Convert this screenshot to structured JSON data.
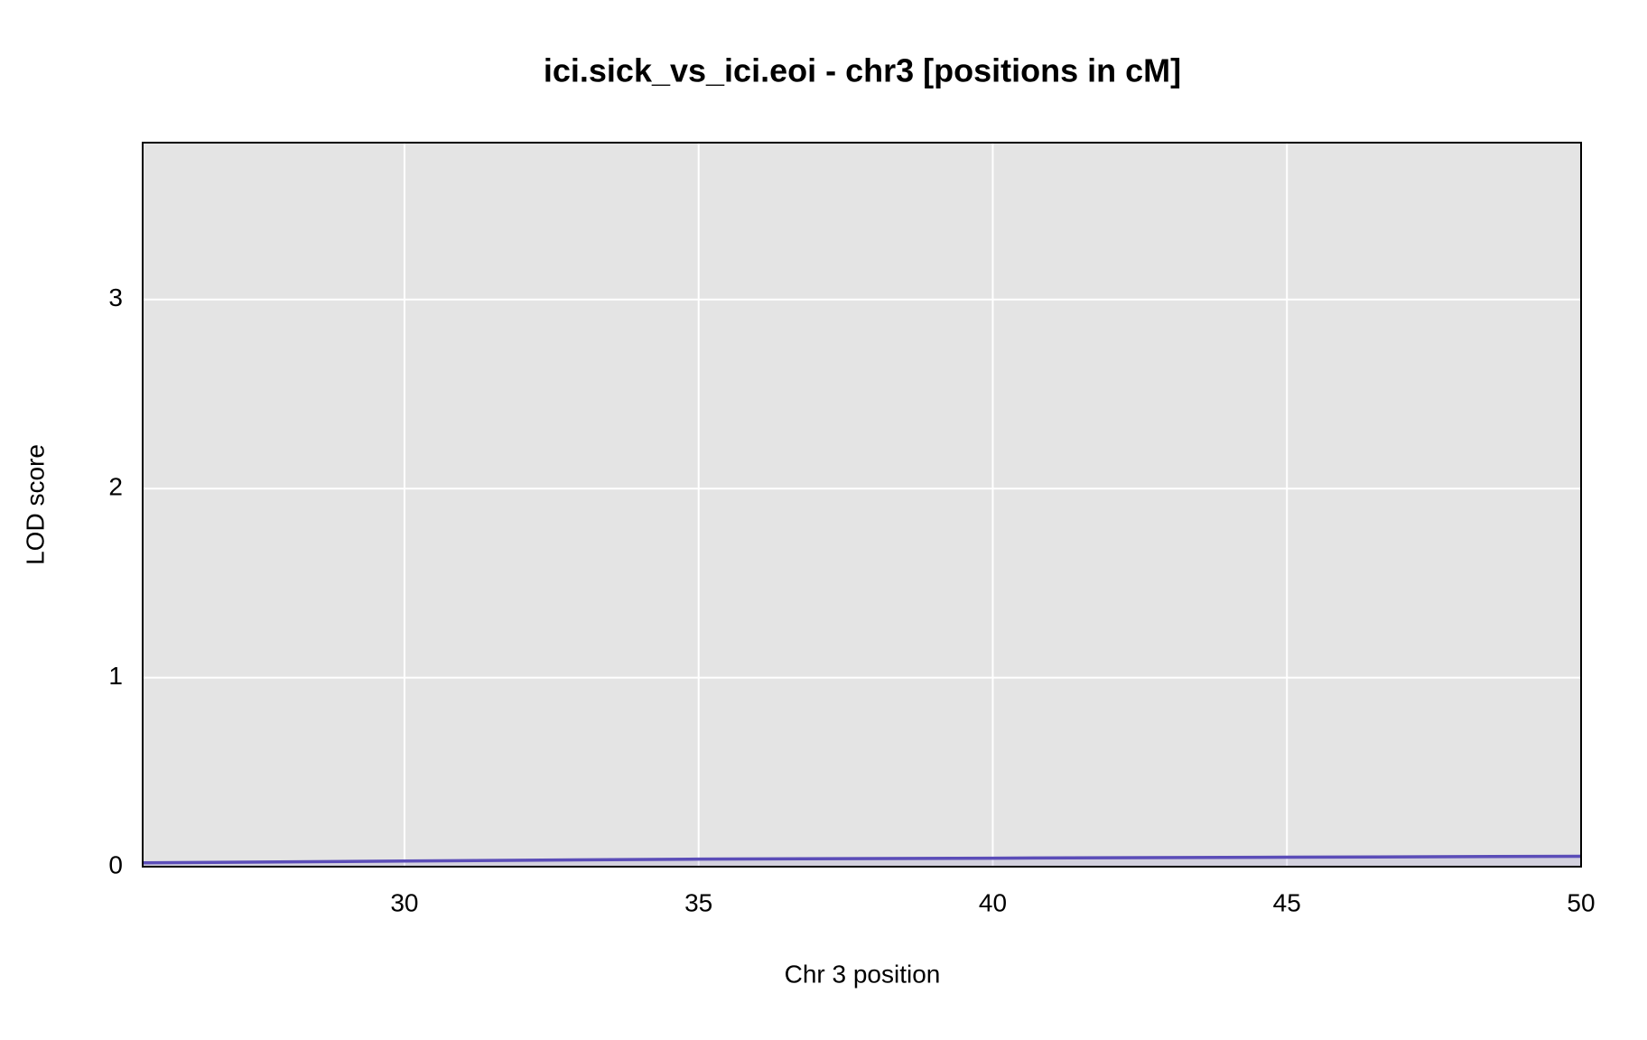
{
  "chart_data": {
    "type": "line",
    "title": "ici.sick_vs_ici.eoi - chr3 [positions in cM]",
    "x_label": "Chr 3 position",
    "y_label": "LOD score",
    "x": [
      25.55,
      30,
      35,
      40,
      45,
      50
    ],
    "series": [
      {
        "color": "#5b4db8",
        "values": [
          0.02,
          0.03,
          0.04,
          0.045,
          0.05,
          0.055
        ]
      }
    ],
    "xlim": [
      25.55,
      50
    ],
    "ylim": [
      0,
      3.83
    ],
    "xticks": [
      30,
      35,
      40,
      45,
      50
    ],
    "yticks": [
      0,
      1,
      2,
      3
    ],
    "grid": true
  }
}
